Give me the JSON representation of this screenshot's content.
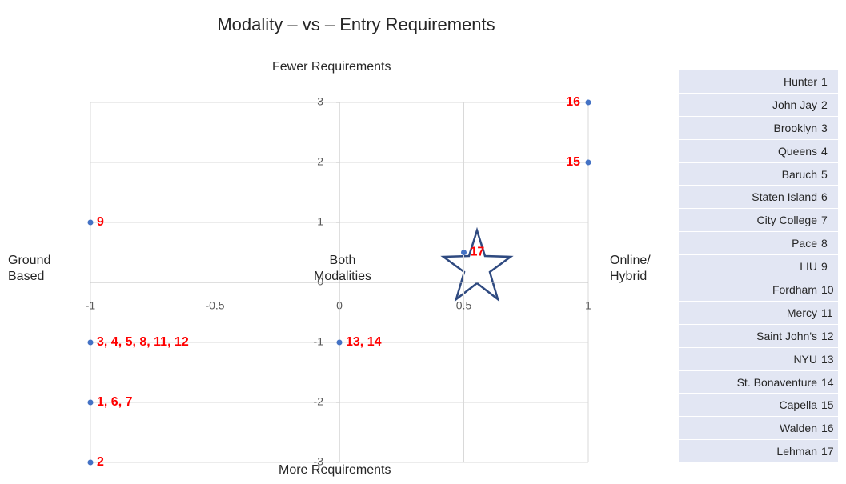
{
  "chart_data": {
    "type": "scatter",
    "title": "Modality – vs – Entry Requirements",
    "top_label": "Fewer Requirements",
    "bottom_label": "More Requirements",
    "left_label": "Ground Based",
    "right_label": "Online/ Hybrid",
    "center_label": "Both Modalities",
    "xlim": [
      -1,
      1
    ],
    "ylim": [
      -3,
      3
    ],
    "xticks": [
      -1,
      -0.5,
      0,
      0.5,
      1
    ],
    "yticks": [
      -3,
      -2,
      -1,
      0,
      1,
      2,
      3
    ],
    "grid": true,
    "series": [
      {
        "color": "#4472c4",
        "x": [
          1,
          1,
          -1,
          0.5,
          -1,
          0,
          -1,
          -1
        ],
        "values": [
          3,
          2,
          1,
          0.5,
          -1,
          -1,
          -2,
          -3
        ],
        "point_labels": [
          "16",
          "15",
          "9",
          "17",
          "3, 4, 5, 8, 11, 12",
          "13, 14",
          "1, 6, 7",
          "2"
        ],
        "label_color": "#ff0000"
      }
    ]
  },
  "table": {
    "rows": [
      [
        "Hunter",
        1
      ],
      [
        "John Jay",
        2
      ],
      [
        "Brooklyn",
        3
      ],
      [
        "Queens",
        4
      ],
      [
        "Baruch",
        5
      ],
      [
        "Staten Island",
        6
      ],
      [
        "City College",
        7
      ],
      [
        "Pace",
        8
      ],
      [
        "LIU",
        9
      ],
      [
        "Fordham",
        10
      ],
      [
        "Mercy",
        11
      ],
      [
        "Saint John's",
        12
      ],
      [
        "NYU",
        13
      ],
      [
        "St. Bonaventure",
        14
      ],
      [
        "Capella",
        15
      ],
      [
        "Walden",
        16
      ],
      [
        "Lehman",
        17
      ]
    ]
  }
}
